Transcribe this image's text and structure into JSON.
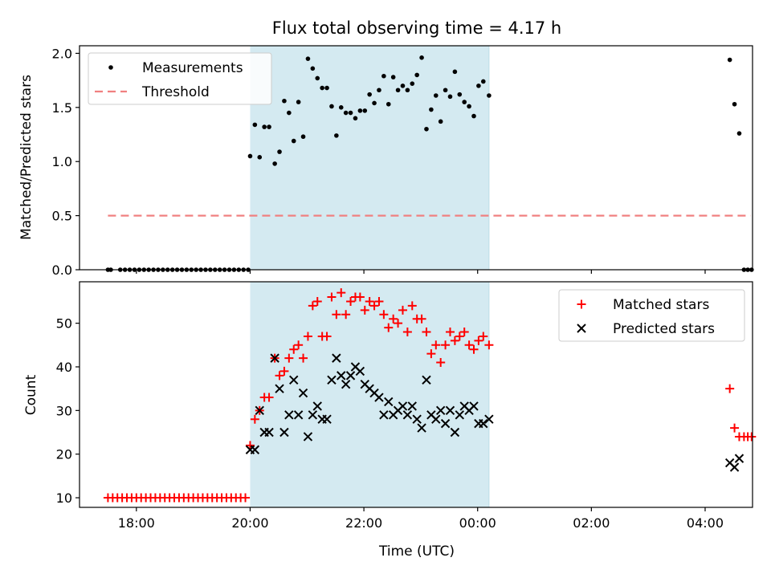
{
  "chart_data": [
    {
      "type": "scatter",
      "title": "Flux total observing time = 4.17 h",
      "xlabel": "",
      "ylabel": "Matched/Predicted stars",
      "x_is_time": true,
      "xlim": [
        "17:00",
        "04:50"
      ],
      "ylim": [
        0,
        2.07
      ],
      "yticks": [
        0.0,
        0.5,
        1.0,
        1.5,
        2.0
      ],
      "ytick_labels": [
        "0.0",
        "0.5",
        "1.0",
        "1.5",
        "2.0"
      ],
      "xticks": [
        "18:00",
        "20:00",
        "22:00",
        "00:00",
        "02:00",
        "04:00"
      ],
      "shaded_region": {
        "from": "20:00",
        "to": "00:12",
        "color": "#d4eaf1"
      },
      "legend": {
        "placement": "top-left",
        "entries": [
          "Measurements",
          "Threshold"
        ]
      },
      "series": [
        {
          "name": "Measurements",
          "marker": "dot",
          "color": "#000000",
          "points": [
            [
              "17:30",
              0
            ],
            [
              "17:33",
              0
            ],
            [
              "17:43",
              0
            ],
            [
              "17:48",
              0
            ],
            [
              "17:53",
              0
            ],
            [
              "17:58",
              0
            ],
            [
              "18:03",
              0
            ],
            [
              "18:08",
              0
            ],
            [
              "18:13",
              0
            ],
            [
              "18:18",
              0
            ],
            [
              "18:23",
              0
            ],
            [
              "18:28",
              0
            ],
            [
              "18:33",
              0
            ],
            [
              "18:38",
              0
            ],
            [
              "18:43",
              0
            ],
            [
              "18:48",
              0
            ],
            [
              "18:53",
              0
            ],
            [
              "18:58",
              0
            ],
            [
              "19:03",
              0
            ],
            [
              "19:08",
              0
            ],
            [
              "19:13",
              0
            ],
            [
              "19:18",
              0
            ],
            [
              "19:23",
              0
            ],
            [
              "19:28",
              0
            ],
            [
              "19:33",
              0
            ],
            [
              "19:38",
              0
            ],
            [
              "19:43",
              0
            ],
            [
              "19:48",
              0
            ],
            [
              "19:53",
              0
            ],
            [
              "19:58",
              0
            ],
            [
              "20:00",
              1.05
            ],
            [
              "20:05",
              1.34
            ],
            [
              "20:10",
              1.04
            ],
            [
              "20:15",
              1.32
            ],
            [
              "20:20",
              1.32
            ],
            [
              "20:26",
              0.98
            ],
            [
              "20:31",
              1.09
            ],
            [
              "20:36",
              1.56
            ],
            [
              "20:41",
              1.45
            ],
            [
              "20:46",
              1.19
            ],
            [
              "20:51",
              1.55
            ],
            [
              "20:56",
              1.23
            ],
            [
              "21:01",
              1.95
            ],
            [
              "21:06",
              1.86
            ],
            [
              "21:11",
              1.77
            ],
            [
              "21:16",
              1.68
            ],
            [
              "21:21",
              1.68
            ],
            [
              "21:26",
              1.51
            ],
            [
              "21:31",
              1.24
            ],
            [
              "21:36",
              1.5
            ],
            [
              "21:41",
              1.45
            ],
            [
              "21:46",
              1.45
            ],
            [
              "21:51",
              1.4
            ],
            [
              "21:56",
              1.47
            ],
            [
              "22:01",
              1.47
            ],
            [
              "22:06",
              1.62
            ],
            [
              "22:11",
              1.54
            ],
            [
              "22:16",
              1.66
            ],
            [
              "22:21",
              1.79
            ],
            [
              "22:26",
              1.53
            ],
            [
              "22:31",
              1.78
            ],
            [
              "22:36",
              1.66
            ],
            [
              "22:41",
              1.7
            ],
            [
              "22:46",
              1.66
            ],
            [
              "22:51",
              1.72
            ],
            [
              "22:56",
              1.8
            ],
            [
              "23:01",
              1.96
            ],
            [
              "23:06",
              1.3
            ],
            [
              "23:11",
              1.48
            ],
            [
              "23:16",
              1.61
            ],
            [
              "23:21",
              1.37
            ],
            [
              "23:26",
              1.66
            ],
            [
              "23:31",
              1.6
            ],
            [
              "23:36",
              1.83
            ],
            [
              "23:41",
              1.62
            ],
            [
              "23:46",
              1.55
            ],
            [
              "23:51",
              1.51
            ],
            [
              "23:56",
              1.42
            ],
            [
              "00:01",
              1.7
            ],
            [
              "00:06",
              1.74
            ],
            [
              "00:12",
              1.61
            ],
            [
              "04:26",
              1.94
            ],
            [
              "04:31",
              1.53
            ],
            [
              "04:36",
              1.26
            ],
            [
              "04:41",
              0
            ],
            [
              "04:45",
              0
            ],
            [
              "04:49",
              0
            ]
          ]
        },
        {
          "name": "Threshold",
          "marker": "dashed-line",
          "color": "#f08080",
          "points": [
            [
              "17:30",
              0.5
            ],
            [
              "04:48",
              0.5
            ]
          ]
        }
      ]
    },
    {
      "type": "scatter",
      "title": "",
      "xlabel": "Time (UTC)",
      "ylabel": "Count",
      "x_is_time": true,
      "xlim": [
        "17:00",
        "04:50"
      ],
      "ylim": [
        7.8,
        59.5
      ],
      "yticks": [
        10,
        20,
        30,
        40,
        50
      ],
      "ytick_labels": [
        "10",
        "20",
        "30",
        "40",
        "50"
      ],
      "xticks": [
        "18:00",
        "20:00",
        "22:00",
        "00:00",
        "02:00",
        "04:00"
      ],
      "shaded_region": {
        "from": "20:00",
        "to": "00:12",
        "color": "#d4eaf1"
      },
      "legend": {
        "placement": "top-right",
        "entries": [
          "Matched stars",
          "Predicted stars"
        ]
      },
      "series": [
        {
          "name": "Matched stars",
          "marker": "plus",
          "color": "#ff0000",
          "points": [
            [
              "17:30",
              10
            ],
            [
              "17:35",
              10
            ],
            [
              "17:40",
              10
            ],
            [
              "17:45",
              10
            ],
            [
              "17:50",
              10
            ],
            [
              "17:55",
              10
            ],
            [
              "18:00",
              10
            ],
            [
              "18:05",
              10
            ],
            [
              "18:10",
              10
            ],
            [
              "18:15",
              10
            ],
            [
              "18:20",
              10
            ],
            [
              "18:25",
              10
            ],
            [
              "18:30",
              10
            ],
            [
              "18:35",
              10
            ],
            [
              "18:40",
              10
            ],
            [
              "18:45",
              10
            ],
            [
              "18:50",
              10
            ],
            [
              "18:55",
              10
            ],
            [
              "19:00",
              10
            ],
            [
              "19:05",
              10
            ],
            [
              "19:10",
              10
            ],
            [
              "19:15",
              10
            ],
            [
              "19:20",
              10
            ],
            [
              "19:25",
              10
            ],
            [
              "19:30",
              10
            ],
            [
              "19:35",
              10
            ],
            [
              "19:40",
              10
            ],
            [
              "19:45",
              10
            ],
            [
              "19:50",
              10
            ],
            [
              "19:55",
              10
            ],
            [
              "20:00",
              22
            ],
            [
              "20:05",
              28
            ],
            [
              "20:10",
              30
            ],
            [
              "20:15",
              33
            ],
            [
              "20:20",
              33
            ],
            [
              "20:26",
              42
            ],
            [
              "20:31",
              38
            ],
            [
              "20:36",
              39
            ],
            [
              "20:41",
              42
            ],
            [
              "20:46",
              44
            ],
            [
              "20:51",
              45
            ],
            [
              "20:56",
              42
            ],
            [
              "21:01",
              47
            ],
            [
              "21:06",
              54
            ],
            [
              "21:11",
              55
            ],
            [
              "21:16",
              47
            ],
            [
              "21:21",
              47
            ],
            [
              "21:26",
              56
            ],
            [
              "21:31",
              52
            ],
            [
              "21:36",
              57
            ],
            [
              "21:41",
              52
            ],
            [
              "21:46",
              55
            ],
            [
              "21:51",
              56
            ],
            [
              "21:56",
              56
            ],
            [
              "22:01",
              53
            ],
            [
              "22:06",
              55
            ],
            [
              "22:11",
              54
            ],
            [
              "22:16",
              55
            ],
            [
              "22:21",
              52
            ],
            [
              "22:26",
              49
            ],
            [
              "22:31",
              51
            ],
            [
              "22:36",
              50
            ],
            [
              "22:41",
              53
            ],
            [
              "22:46",
              48
            ],
            [
              "22:51",
              54
            ],
            [
              "22:56",
              51
            ],
            [
              "23:01",
              51
            ],
            [
              "23:06",
              48
            ],
            [
              "23:11",
              43
            ],
            [
              "23:16",
              45
            ],
            [
              "23:21",
              41
            ],
            [
              "23:26",
              45
            ],
            [
              "23:31",
              48
            ],
            [
              "23:36",
              46
            ],
            [
              "23:41",
              47
            ],
            [
              "23:46",
              48
            ],
            [
              "23:51",
              45
            ],
            [
              "23:56",
              44
            ],
            [
              "00:01",
              46
            ],
            [
              "00:06",
              47
            ],
            [
              "00:12",
              45
            ],
            [
              "04:26",
              35
            ],
            [
              "04:31",
              26
            ],
            [
              "04:36",
              24
            ],
            [
              "04:41",
              24
            ],
            [
              "04:45",
              24
            ],
            [
              "04:49",
              24
            ]
          ]
        },
        {
          "name": "Predicted stars",
          "marker": "x",
          "color": "#000000",
          "points": [
            [
              "20:00",
              21
            ],
            [
              "20:05",
              21
            ],
            [
              "20:10",
              30
            ],
            [
              "20:15",
              25
            ],
            [
              "20:20",
              25
            ],
            [
              "20:26",
              42
            ],
            [
              "20:31",
              35
            ],
            [
              "20:36",
              25
            ],
            [
              "20:41",
              29
            ],
            [
              "20:46",
              37
            ],
            [
              "20:51",
              29
            ],
            [
              "20:56",
              34
            ],
            [
              "21:01",
              24
            ],
            [
              "21:06",
              29
            ],
            [
              "21:11",
              31
            ],
            [
              "21:16",
              28
            ],
            [
              "21:21",
              28
            ],
            [
              "21:26",
              37
            ],
            [
              "21:31",
              42
            ],
            [
              "21:36",
              38
            ],
            [
              "21:41",
              36
            ],
            [
              "21:46",
              38
            ],
            [
              "21:51",
              40
            ],
            [
              "21:56",
              39
            ],
            [
              "22:01",
              36
            ],
            [
              "22:06",
              35
            ],
            [
              "22:11",
              34
            ],
            [
              "22:16",
              33
            ],
            [
              "22:21",
              29
            ],
            [
              "22:26",
              32
            ],
            [
              "22:31",
              29
            ],
            [
              "22:36",
              30
            ],
            [
              "22:41",
              31
            ],
            [
              "22:46",
              29
            ],
            [
              "22:51",
              31
            ],
            [
              "22:56",
              28
            ],
            [
              "23:01",
              26
            ],
            [
              "23:06",
              37
            ],
            [
              "23:11",
              29
            ],
            [
              "23:16",
              28
            ],
            [
              "23:21",
              30
            ],
            [
              "23:26",
              27
            ],
            [
              "23:31",
              30
            ],
            [
              "23:36",
              25
            ],
            [
              "23:41",
              29
            ],
            [
              "23:46",
              31
            ],
            [
              "23:51",
              30
            ],
            [
              "23:56",
              31
            ],
            [
              "00:01",
              27
            ],
            [
              "00:06",
              27
            ],
            [
              "00:12",
              28
            ],
            [
              "04:26",
              18
            ],
            [
              "04:31",
              17
            ],
            [
              "04:36",
              19
            ]
          ]
        }
      ]
    }
  ]
}
